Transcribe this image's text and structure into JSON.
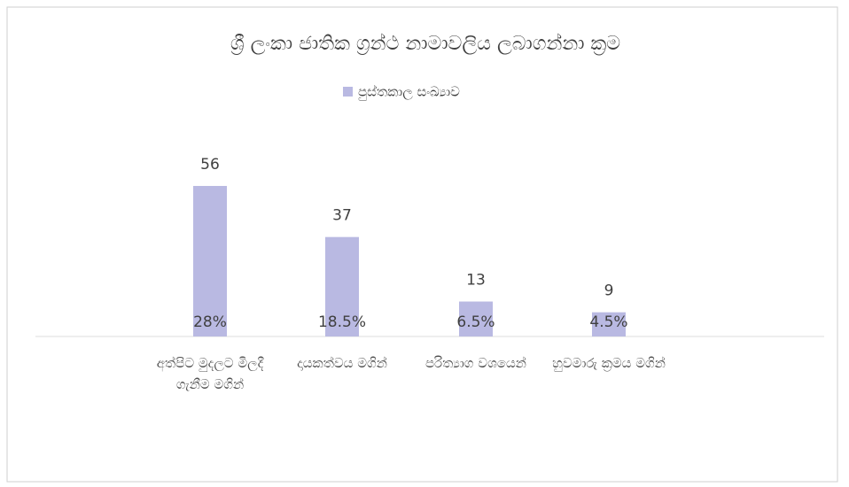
{
  "chart_data": {
    "type": "bar",
    "title": "ශ්‍රී ලංකා ජාතික ග්‍රන්ථ නාමාවලිය ලබාගන්නා ක්‍රම",
    "categories": [
      "අත්පිට මුදලට මිලදී ගැනීම මගින්",
      "දායකත්වය මගින්",
      "පරිත්‍යාග වශයෙන්",
      "හුවමාරු ක්‍රමය මගින්"
    ],
    "series": [
      {
        "name": "පුස්තකාල සංඛ්‍යාව",
        "color": "#b9b9e2",
        "values": [
          56,
          37,
          13,
          9
        ]
      }
    ],
    "share_values": [
      28,
      18.5,
      6.5,
      4.5
    ],
    "share_labels": [
      "28%",
      "18.5%",
      "6.5%",
      "4.5%"
    ],
    "legend": "top"
  }
}
